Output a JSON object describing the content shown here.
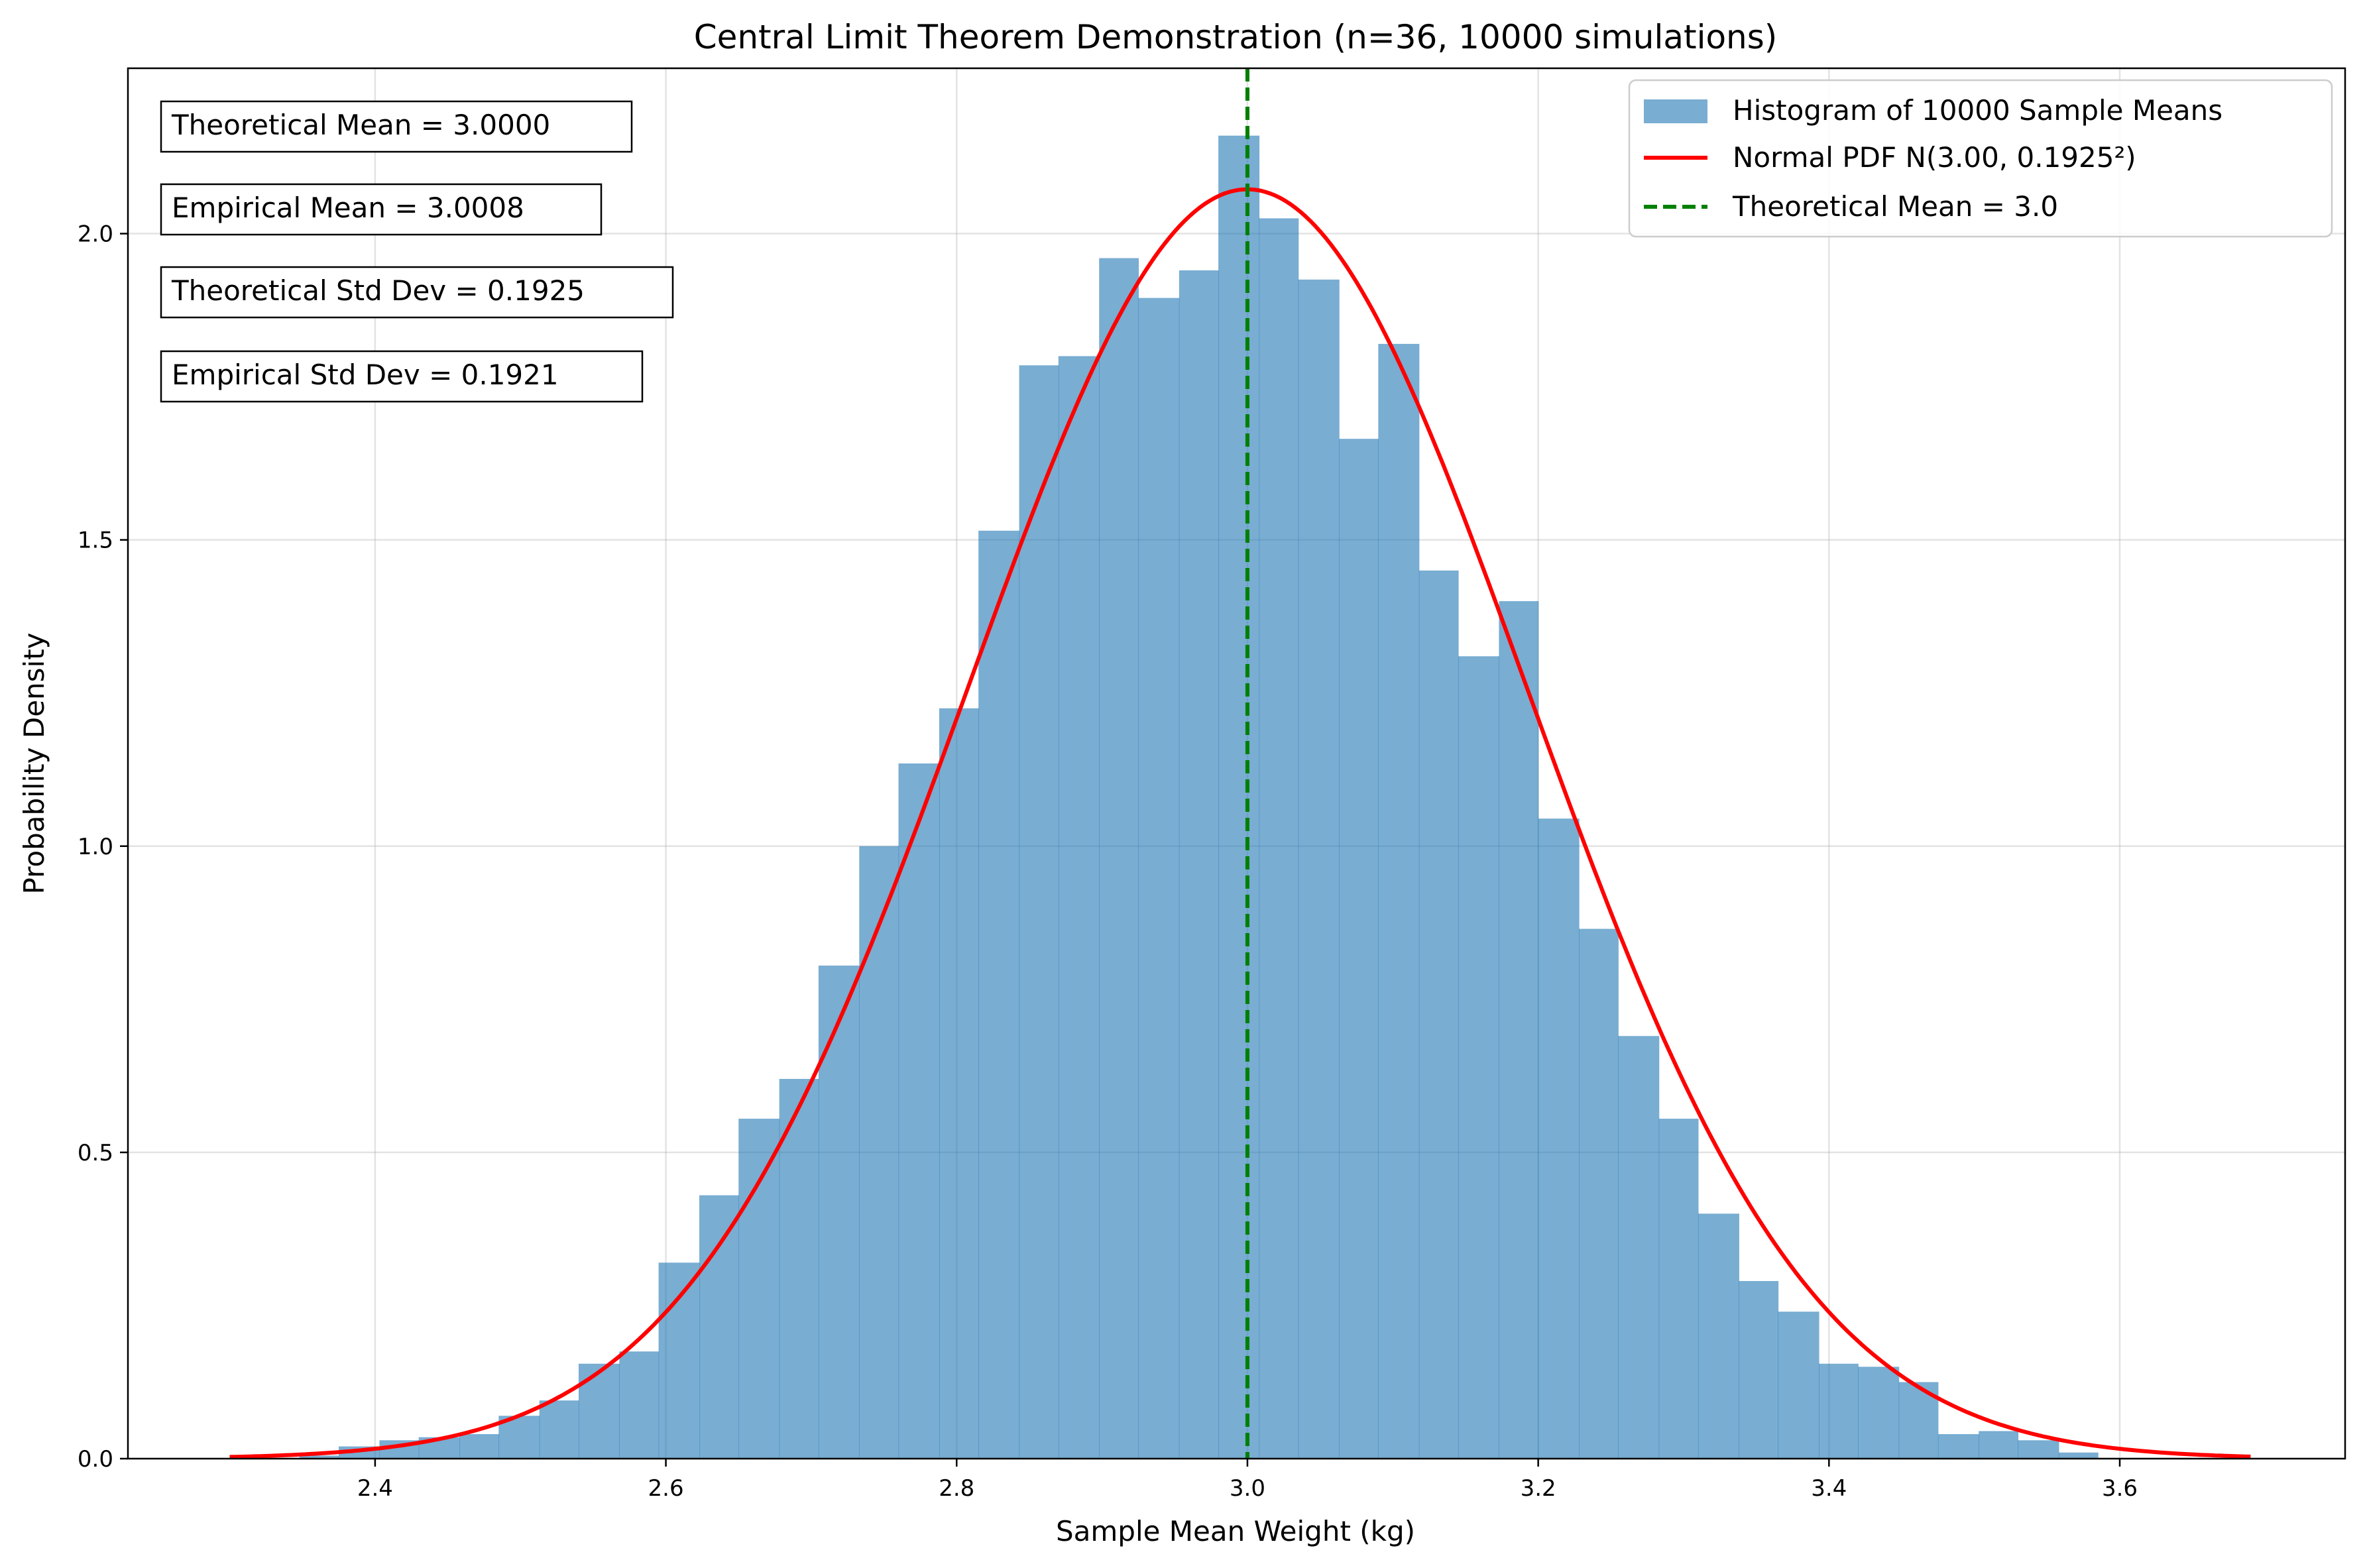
{
  "chart_data": {
    "type": "bar",
    "title": "Central Limit Theorem Demonstration (n=36, 10000 simulations)",
    "xlabel": "Sample Mean Weight (kg)",
    "ylabel": "Probability Density",
    "xlim": [
      2.23,
      3.755
    ],
    "ylim": [
      0,
      2.27
    ],
    "xticks": [
      2.4,
      2.6,
      2.8,
      3.0,
      3.2,
      3.4,
      3.6
    ],
    "yticks": [
      0.0,
      0.5,
      1.0,
      1.5,
      2.0
    ],
    "xtick_labels": [
      "2.4",
      "2.6",
      "2.8",
      "3.0",
      "3.2",
      "3.4",
      "3.6"
    ],
    "ytick_labels": [
      "0.0",
      "0.5",
      "1.0",
      "1.5",
      "2.0"
    ],
    "grid": true,
    "legend_position": "top-right",
    "histogram": {
      "name": "Histogram of 10000 Sample Means",
      "color": "#1f77b4",
      "opacity": 0.6,
      "bin_edges": [
        2.348,
        2.375,
        2.403,
        2.43,
        2.458,
        2.485,
        2.513,
        2.54,
        2.568,
        2.595,
        2.623,
        2.65,
        2.678,
        2.705,
        2.733,
        2.76,
        2.788,
        2.815,
        2.843,
        2.87,
        2.898,
        2.925,
        2.953,
        2.98,
        3.008,
        3.035,
        3.063,
        3.09,
        3.118,
        3.145,
        3.173,
        3.2,
        3.228,
        3.255,
        3.283,
        3.31,
        3.338,
        3.365,
        3.393,
        3.42,
        3.448,
        3.475,
        3.503,
        3.53,
        3.558,
        3.585
      ],
      "densities": [
        0.005,
        0.02,
        0.03,
        0.035,
        0.04,
        0.07,
        0.095,
        0.155,
        0.175,
        0.32,
        0.43,
        0.555,
        0.62,
        0.805,
        1.0,
        1.135,
        1.225,
        1.515,
        1.785,
        1.8,
        1.96,
        1.895,
        1.94,
        2.16,
        2.025,
        1.925,
        1.665,
        1.82,
        1.45,
        1.31,
        1.4,
        1.045,
        0.865,
        0.69,
        0.555,
        0.4,
        0.29,
        0.24,
        0.155,
        0.15,
        0.125,
        0.04,
        0.045,
        0.03,
        0.01
      ]
    },
    "series": [
      {
        "name": "Normal PDF N(3.00, 0.1925²)",
        "type": "line",
        "color": "#ff0000",
        "mean": 3.0,
        "std": 0.1925,
        "x_range": [
          2.3,
          3.69
        ]
      },
      {
        "name": "Theoretical Mean = 3.0",
        "type": "vline",
        "color": "#008000",
        "x": 3.0,
        "dashed": true
      }
    ],
    "annotations": [
      "Theoretical Mean = 3.0000",
      "Empirical Mean = 3.0008",
      "Theoretical Std Dev = 0.1925",
      "Empirical Std Dev = 0.1921"
    ]
  }
}
